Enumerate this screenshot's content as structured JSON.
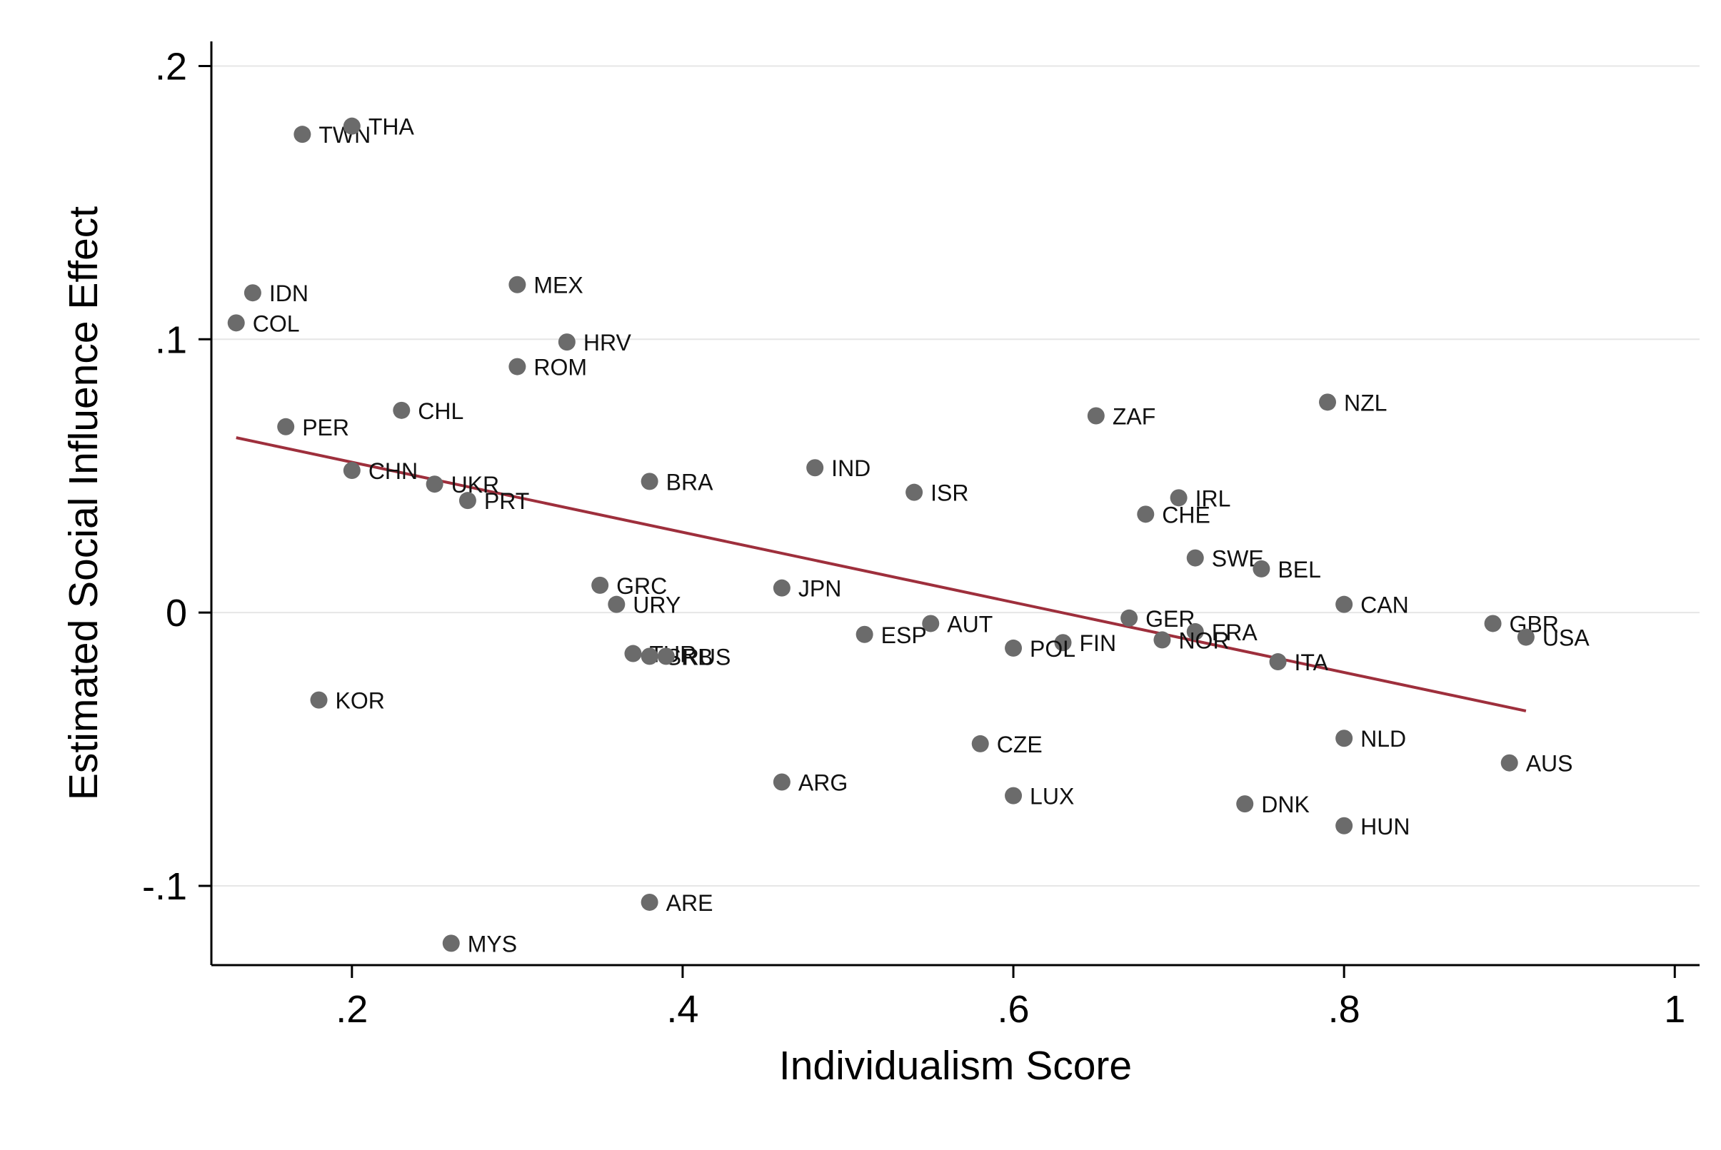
{
  "chart_data": {
    "type": "scatter",
    "title": "",
    "xlabel": "Individualism Score",
    "ylabel": "Estimated Social Influence Effect",
    "xlim": [
      0.115,
      1.015
    ],
    "ylim": [
      -0.129,
      0.209
    ],
    "x_ticks": [
      {
        "value": 0.2,
        "label": ".2"
      },
      {
        "value": 0.4,
        "label": ".4"
      },
      {
        "value": 0.6,
        "label": ".6"
      },
      {
        "value": 0.8,
        "label": ".8"
      },
      {
        "value": 1.0,
        "label": "1"
      }
    ],
    "y_ticks": [
      {
        "value": 0.2,
        "label": ".2"
      },
      {
        "value": 0.1,
        "label": ".1"
      },
      {
        "value": 0.0,
        "label": "0"
      },
      {
        "value": -0.1,
        "label": "-.1"
      }
    ],
    "grid": true,
    "legend": "none",
    "colors": {
      "points": "#6b6b6b",
      "fit_line": "#9e2f3c"
    },
    "fit_line": {
      "x": [
        0.13,
        0.91
      ],
      "y": [
        0.064,
        -0.036
      ]
    },
    "points": [
      {
        "label": "TWN",
        "x": 0.17,
        "y": 0.175
      },
      {
        "label": "THA",
        "x": 0.2,
        "y": 0.178
      },
      {
        "label": "IDN",
        "x": 0.14,
        "y": 0.117
      },
      {
        "label": "COL",
        "x": 0.13,
        "y": 0.106
      },
      {
        "label": "MEX",
        "x": 0.3,
        "y": 0.12
      },
      {
        "label": "HRV",
        "x": 0.33,
        "y": 0.099
      },
      {
        "label": "ROM",
        "x": 0.3,
        "y": 0.09
      },
      {
        "label": "CHL",
        "x": 0.23,
        "y": 0.074
      },
      {
        "label": "PER",
        "x": 0.16,
        "y": 0.068
      },
      {
        "label": "CHN",
        "x": 0.2,
        "y": 0.052
      },
      {
        "label": "UKR",
        "x": 0.25,
        "y": 0.047
      },
      {
        "label": "PRT",
        "x": 0.27,
        "y": 0.041
      },
      {
        "label": "BRA",
        "x": 0.38,
        "y": 0.048
      },
      {
        "label": "IND",
        "x": 0.48,
        "y": 0.053
      },
      {
        "label": "ISR",
        "x": 0.54,
        "y": 0.044
      },
      {
        "label": "ZAF",
        "x": 0.65,
        "y": 0.072
      },
      {
        "label": "NZL",
        "x": 0.79,
        "y": 0.077
      },
      {
        "label": "IRL",
        "x": 0.7,
        "y": 0.042
      },
      {
        "label": "CHE",
        "x": 0.68,
        "y": 0.036
      },
      {
        "label": "SWE",
        "x": 0.71,
        "y": 0.02
      },
      {
        "label": "BEL",
        "x": 0.75,
        "y": 0.016
      },
      {
        "label": "GRC",
        "x": 0.35,
        "y": 0.01
      },
      {
        "label": "URY",
        "x": 0.36,
        "y": 0.003
      },
      {
        "label": "JPN",
        "x": 0.46,
        "y": 0.009
      },
      {
        "label": "CAN",
        "x": 0.8,
        "y": 0.003
      },
      {
        "label": "GER",
        "x": 0.67,
        "y": -0.002
      },
      {
        "label": "AUT",
        "x": 0.55,
        "y": -0.004
      },
      {
        "label": "ESP",
        "x": 0.51,
        "y": -0.008
      },
      {
        "label": "FRA",
        "x": 0.71,
        "y": -0.007
      },
      {
        "label": "NOR",
        "x": 0.69,
        "y": -0.01
      },
      {
        "label": "FIN",
        "x": 0.63,
        "y": -0.011
      },
      {
        "label": "POL",
        "x": 0.6,
        "y": -0.013
      },
      {
        "label": "GBR",
        "x": 0.89,
        "y": -0.004
      },
      {
        "label": "USA",
        "x": 0.91,
        "y": -0.009
      },
      {
        "label": "TUR",
        "x": 0.37,
        "y": -0.015
      },
      {
        "label": "SRB",
        "x": 0.38,
        "y": -0.016
      },
      {
        "label": "RUS",
        "x": 0.39,
        "y": -0.016
      },
      {
        "label": "ITA",
        "x": 0.76,
        "y": -0.018
      },
      {
        "label": "KOR",
        "x": 0.18,
        "y": -0.032
      },
      {
        "label": "CZE",
        "x": 0.58,
        "y": -0.048
      },
      {
        "label": "NLD",
        "x": 0.8,
        "y": -0.046
      },
      {
        "label": "AUS",
        "x": 0.9,
        "y": -0.055
      },
      {
        "label": "ARG",
        "x": 0.46,
        "y": -0.062
      },
      {
        "label": "LUX",
        "x": 0.6,
        "y": -0.067
      },
      {
        "label": "DNK",
        "x": 0.74,
        "y": -0.07
      },
      {
        "label": "HUN",
        "x": 0.8,
        "y": -0.078
      },
      {
        "label": "ARE",
        "x": 0.38,
        "y": -0.106
      },
      {
        "label": "MYS",
        "x": 0.26,
        "y": -0.121
      }
    ]
  }
}
